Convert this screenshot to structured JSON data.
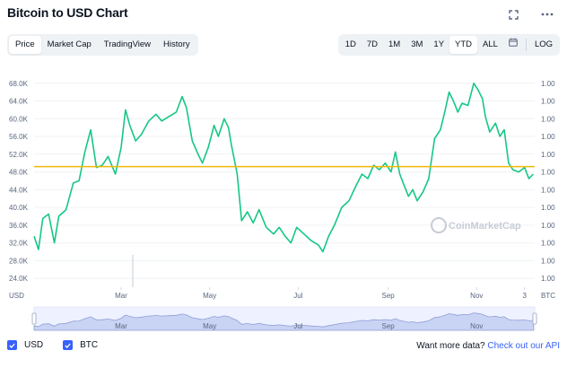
{
  "header": {
    "title": "Bitcoin to USD Chart",
    "fullscreen_icon": "expand-icon",
    "more_icon": "more-dots-icon"
  },
  "tabs": [
    {
      "label": "Price",
      "active": true
    },
    {
      "label": "Market Cap",
      "active": false
    },
    {
      "label": "TradingView",
      "active": false
    },
    {
      "label": "History",
      "active": false
    }
  ],
  "ranges": [
    {
      "label": "1D",
      "active": false
    },
    {
      "label": "7D",
      "active": false
    },
    {
      "label": "1M",
      "active": false
    },
    {
      "label": "3M",
      "active": false
    },
    {
      "label": "1Y",
      "active": false
    },
    {
      "label": "YTD",
      "active": true
    },
    {
      "label": "ALL",
      "active": false
    }
  ],
  "log_label": "LOG",
  "calendar_icon": "calendar-icon",
  "legend": {
    "usd_label": "USD",
    "btc_label": "BTC"
  },
  "promo": {
    "text": "Want more data?",
    "link": "Check out our API"
  },
  "colors": {
    "line": "#16c784",
    "reference": "#f0b90b",
    "accent": "#3861fb"
  },
  "chart_data": {
    "type": "line",
    "title": "Bitcoin to USD Chart",
    "y_axis_label": "USD",
    "right_axis_label": "BTC",
    "yticks": [
      "24.0K",
      "28.0K",
      "32.0K",
      "36.0K",
      "40.0K",
      "44.0K",
      "48.0K",
      "52.0K",
      "56.0K",
      "60.0K",
      "64.0K",
      "68.0K"
    ],
    "ylim": [
      22000,
      72000
    ],
    "right_ticks": [
      "1.00",
      "1.00",
      "1.00",
      "1.00",
      "1.00",
      "1.00",
      "1.00",
      "1.00",
      "1.00",
      "1.00",
      "1.00",
      "1.00"
    ],
    "xticks": [
      "Mar",
      "May",
      "Jul",
      "Sep",
      "Nov",
      "3"
    ],
    "xtick_days": [
      60,
      121,
      182,
      244,
      305,
      338
    ],
    "reference_value": 49200,
    "series": [
      {
        "values": [
          [
            0,
            33500
          ],
          [
            3,
            30500
          ],
          [
            6,
            37500
          ],
          [
            10,
            38500
          ],
          [
            14,
            32000
          ],
          [
            17,
            38000
          ],
          [
            22,
            39500
          ],
          [
            27,
            45500
          ],
          [
            31,
            46000
          ],
          [
            35,
            52500
          ],
          [
            39,
            57500
          ],
          [
            43,
            49000
          ],
          [
            47,
            49500
          ],
          [
            51,
            51500
          ],
          [
            56,
            47500
          ],
          [
            60,
            53500
          ],
          [
            63,
            62000
          ],
          [
            66,
            58500
          ],
          [
            70,
            55000
          ],
          [
            74,
            56500
          ],
          [
            79,
            59500
          ],
          [
            84,
            61000
          ],
          [
            88,
            59500
          ],
          [
            93,
            60500
          ],
          [
            98,
            61500
          ],
          [
            102,
            65000
          ],
          [
            105,
            62500
          ],
          [
            109,
            55000
          ],
          [
            113,
            52000
          ],
          [
            116,
            50000
          ],
          [
            120,
            53500
          ],
          [
            124,
            58500
          ],
          [
            127,
            56000
          ],
          [
            131,
            60000
          ],
          [
            134,
            58000
          ],
          [
            136,
            54000
          ],
          [
            140,
            47500
          ],
          [
            143,
            37000
          ],
          [
            147,
            39000
          ],
          [
            151,
            36500
          ],
          [
            155,
            39500
          ],
          [
            160,
            35500
          ],
          [
            165,
            34000
          ],
          [
            169,
            35500
          ],
          [
            173,
            33500
          ],
          [
            177,
            32000
          ],
          [
            181,
            35500
          ],
          [
            186,
            34000
          ],
          [
            191,
            32500
          ],
          [
            196,
            31500
          ],
          [
            199,
            30000
          ],
          [
            203,
            33500
          ],
          [
            207,
            36000
          ],
          [
            212,
            40000
          ],
          [
            217,
            41500
          ],
          [
            222,
            45000
          ],
          [
            226,
            47500
          ],
          [
            230,
            46500
          ],
          [
            234,
            49500
          ],
          [
            238,
            48500
          ],
          [
            242,
            50000
          ],
          [
            246,
            48000
          ],
          [
            249,
            52500
          ],
          [
            252,
            47500
          ],
          [
            255,
            45000
          ],
          [
            258,
            42500
          ],
          [
            261,
            44000
          ],
          [
            264,
            41500
          ],
          [
            268,
            43500
          ],
          [
            272,
            46500
          ],
          [
            276,
            55500
          ],
          [
            280,
            57500
          ],
          [
            283,
            61500
          ],
          [
            286,
            66000
          ],
          [
            289,
            64000
          ],
          [
            292,
            61500
          ],
          [
            295,
            63500
          ],
          [
            299,
            63000
          ],
          [
            303,
            68000
          ],
          [
            306,
            66500
          ],
          [
            309,
            64500
          ],
          [
            311,
            60500
          ],
          [
            314,
            57000
          ],
          [
            318,
            59000
          ],
          [
            321,
            56000
          ],
          [
            324,
            57500
          ],
          [
            327,
            50000
          ],
          [
            330,
            48500
          ],
          [
            334,
            48000
          ],
          [
            338,
            49000
          ],
          [
            341,
            46500
          ],
          [
            344,
            47500
          ]
        ]
      }
    ]
  }
}
